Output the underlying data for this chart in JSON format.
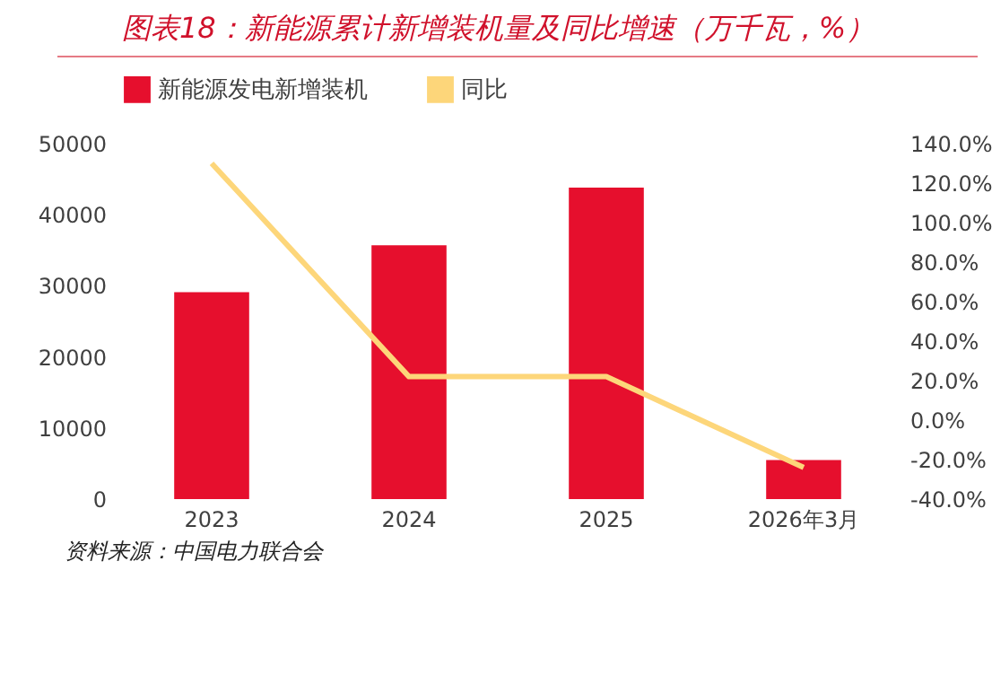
{
  "chart_data": {
    "type": "bar",
    "title": "图表18：新能源累计新增装机量及同比增速（万千瓦，%）",
    "categories": [
      "2023",
      "2024",
      "2025",
      "2026年3月"
    ],
    "series": [
      {
        "name": "新能源发电新增装机",
        "color": "#e60f2d",
        "values": [
          29100,
          35700,
          43800,
          5500
        ]
      },
      {
        "name": "同比",
        "type": "line",
        "axis": "y2",
        "color": "#fdd67a",
        "values": [
          130,
          22,
          22,
          -24
        ]
      }
    ],
    "ylim": [
      0,
      50000
    ],
    "yticks": [
      0,
      10000,
      20000,
      30000,
      40000,
      50000
    ],
    "y2lim": [
      -40,
      140
    ],
    "y2ticks": [
      {
        "value": -40,
        "label": "-40.0%"
      },
      {
        "value": -20,
        "label": "-20.0%"
      },
      {
        "value": 0,
        "label": "0.0%"
      },
      {
        "value": 20,
        "label": "20.0%"
      },
      {
        "value": 40,
        "label": "40.0%"
      },
      {
        "value": 60,
        "label": "60.0%"
      },
      {
        "value": 80,
        "label": "80.0%"
      },
      {
        "value": 100,
        "label": "100.0%"
      },
      {
        "value": 120,
        "label": "120.0%"
      },
      {
        "value": 140,
        "label": "140.0%"
      }
    ],
    "legend": "top",
    "grid": false,
    "annotations": [
      "资料来源：中国电力联合会"
    ]
  }
}
